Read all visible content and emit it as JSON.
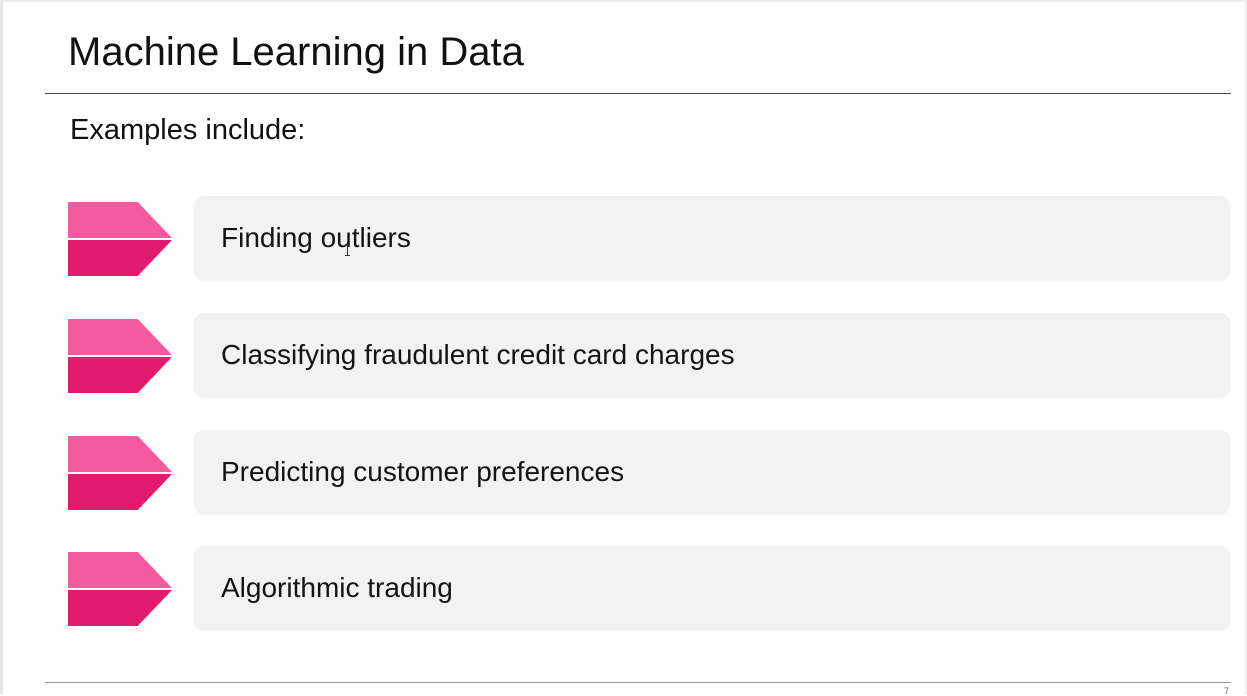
{
  "slide": {
    "title": "Machine Learning in Data",
    "intro": "Examples include:",
    "items": [
      {
        "label": "Finding outliers"
      },
      {
        "label": "Classifying fraudulent credit card charges"
      },
      {
        "label": "Predicting customer preferences"
      },
      {
        "label": "Algorithmic trading"
      }
    ],
    "page_number": "7"
  },
  "colors": {
    "chevron_light": "#f45b9f",
    "chevron_dark": "#e01a6d",
    "box_background": "#f3f2f2"
  },
  "icons": {
    "cursor": "text-cursor-icon",
    "bullet": "chevron-arrow-icon"
  }
}
